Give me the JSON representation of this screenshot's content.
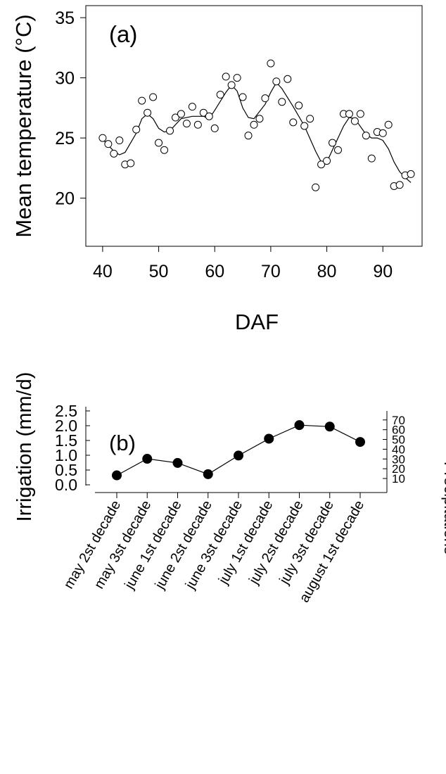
{
  "chart_data": [
    {
      "type": "scatter",
      "panel_label": "(a)",
      "xlabel": "DAF",
      "ylabel": "Mean temperature (°C)",
      "xlim": [
        37,
        97
      ],
      "ylim": [
        16,
        36
      ],
      "xticks": [
        40,
        50,
        60,
        70,
        80,
        90
      ],
      "yticks": [
        20,
        25,
        30,
        35
      ],
      "points": [
        [
          40,
          25.0
        ],
        [
          41,
          24.5
        ],
        [
          42,
          23.7
        ],
        [
          43,
          24.8
        ],
        [
          44,
          22.8
        ],
        [
          45,
          22.9
        ],
        [
          46,
          25.7
        ],
        [
          47,
          28.1
        ],
        [
          48,
          27.1
        ],
        [
          49,
          28.4
        ],
        [
          50,
          24.6
        ],
        [
          51,
          24.0
        ],
        [
          52,
          25.6
        ],
        [
          53,
          26.7
        ],
        [
          54,
          27.0
        ],
        [
          55,
          26.2
        ],
        [
          56,
          27.6
        ],
        [
          57,
          26.1
        ],
        [
          58,
          27.1
        ],
        [
          59,
          26.8
        ],
        [
          60,
          25.8
        ],
        [
          61,
          28.6
        ],
        [
          62,
          30.1
        ],
        [
          63,
          29.4
        ],
        [
          64,
          30.0
        ],
        [
          65,
          28.4
        ],
        [
          66,
          25.2
        ],
        [
          67,
          26.1
        ],
        [
          68,
          26.6
        ],
        [
          69,
          28.3
        ],
        [
          70,
          31.2
        ],
        [
          71,
          29.7
        ],
        [
          72,
          28.0
        ],
        [
          73,
          29.9
        ],
        [
          74,
          26.3
        ],
        [
          75,
          27.7
        ],
        [
          76,
          26.0
        ],
        [
          77,
          26.6
        ],
        [
          78,
          20.9
        ],
        [
          79,
          22.8
        ],
        [
          80,
          23.1
        ],
        [
          81,
          24.6
        ],
        [
          82,
          24.0
        ],
        [
          83,
          27.0
        ],
        [
          84,
          27.0
        ],
        [
          85,
          26.4
        ],
        [
          86,
          27.0
        ],
        [
          87,
          25.2
        ],
        [
          88,
          23.3
        ],
        [
          89,
          25.5
        ],
        [
          90,
          25.4
        ],
        [
          91,
          26.1
        ],
        [
          92,
          21.0
        ],
        [
          93,
          21.1
        ],
        [
          94,
          21.9
        ],
        [
          95,
          22.0
        ]
      ],
      "smooth_line": [
        [
          40,
          24.9
        ],
        [
          42,
          23.9
        ],
        [
          43,
          23.6
        ],
        [
          44,
          23.8
        ],
        [
          46,
          25.4
        ],
        [
          47,
          26.6
        ],
        [
          48,
          27.0
        ],
        [
          49,
          26.6
        ],
        [
          50,
          25.8
        ],
        [
          51,
          25.5
        ],
        [
          52,
          25.6
        ],
        [
          54,
          26.6
        ],
        [
          56,
          26.8
        ],
        [
          58,
          26.8
        ],
        [
          59,
          26.6
        ],
        [
          60,
          27.3
        ],
        [
          62,
          28.8
        ],
        [
          63,
          29.4
        ],
        [
          64,
          28.9
        ],
        [
          65,
          27.5
        ],
        [
          66,
          26.7
        ],
        [
          67,
          26.6
        ],
        [
          69,
          27.8
        ],
        [
          70,
          28.8
        ],
        [
          71,
          29.6
        ],
        [
          72,
          29.1
        ],
        [
          74,
          27.6
        ],
        [
          76,
          26.0
        ],
        [
          78,
          23.9
        ],
        [
          79,
          23.0
        ],
        [
          80,
          23.0
        ],
        [
          81,
          24.0
        ],
        [
          83,
          26.0
        ],
        [
          84,
          26.7
        ],
        [
          85,
          26.6
        ],
        [
          87,
          25.3
        ],
        [
          88,
          25.0
        ],
        [
          89,
          25.0
        ],
        [
          90,
          24.8
        ],
        [
          91,
          24.1
        ],
        [
          92,
          23.0
        ],
        [
          93,
          22.2
        ],
        [
          94,
          21.7
        ],
        [
          95,
          21.3
        ]
      ]
    },
    {
      "type": "line",
      "panel_label": "(b)",
      "xlabel": "",
      "ylabel": "Irrigation (mm/d)",
      "y2label": "Precipitations",
      "ylim": [
        -0.05,
        2.5
      ],
      "yticks": [
        0.0,
        0.5,
        1.0,
        1.5,
        2.0,
        2.5
      ],
      "ytick_labels": [
        "0.0",
        "0.5",
        "1.0",
        "1.5",
        "2.0",
        "2.5"
      ],
      "y2lim": [
        2.8,
        77.8
      ],
      "y2ticks": [
        10,
        20,
        30,
        40,
        50,
        60,
        70
      ],
      "categories": [
        "may 2st decade",
        "may 3st decade",
        "june 1st decade",
        "june 2st decade",
        "june 3st decade",
        "july 1st decade",
        "july 2st decade",
        "july 3st decade",
        "august 1st decade"
      ],
      "values": [
        0.32,
        0.88,
        0.74,
        0.36,
        0.99,
        1.56,
        2.02,
        1.97,
        1.45
      ]
    }
  ]
}
